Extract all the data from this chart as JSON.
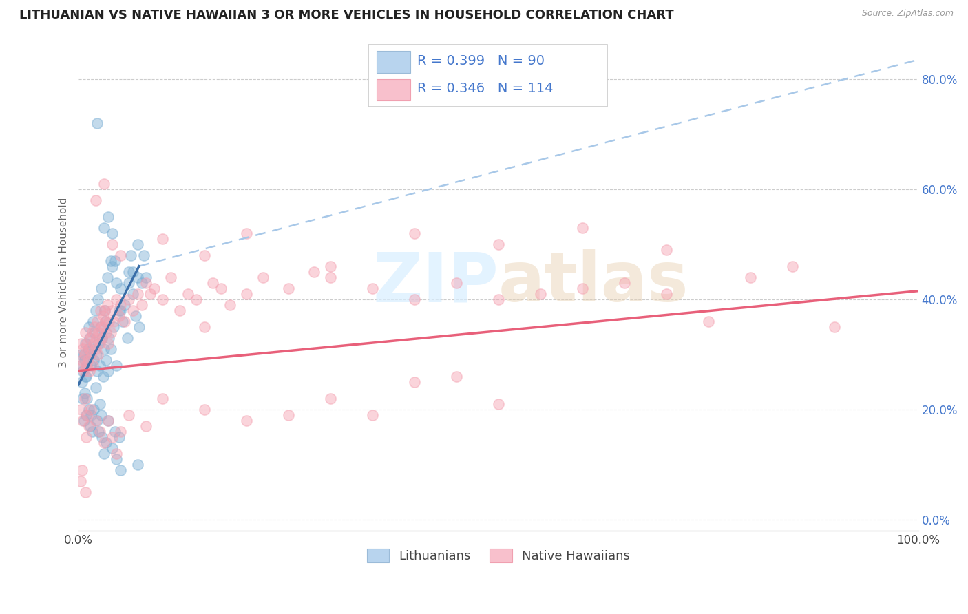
{
  "title": "LITHUANIAN VS NATIVE HAWAIIAN 3 OR MORE VEHICLES IN HOUSEHOLD CORRELATION CHART",
  "source": "Source: ZipAtlas.com",
  "ylabel": "3 or more Vehicles in Household",
  "xlim": [
    0.0,
    1.0
  ],
  "ylim": [
    -0.02,
    0.88
  ],
  "y_ticks": [
    0.0,
    0.2,
    0.4,
    0.6,
    0.8
  ],
  "y_tick_labels": [
    "0.0%",
    "20.0%",
    "40.0%",
    "60.0%",
    "80.0%"
  ],
  "x_ticks": [
    0.0,
    0.2,
    0.4,
    0.6,
    0.8,
    1.0
  ],
  "x_tick_labels": [
    "0.0%",
    "",
    "",
    "",
    "",
    "100.0%"
  ],
  "blue_color": "#7BAFD4",
  "pink_color": "#F4A0B0",
  "trendline_blue": "#3A6EA8",
  "trendline_pink": "#E8607A",
  "trendline_dashed": "#A8C8E8",
  "R_blue": 0.399,
  "N_blue": 90,
  "R_pink": 0.346,
  "N_pink": 114,
  "legend_text_color": "#4477CC",
  "legend_labels": [
    "Lithuanians",
    "Native Hawaiians"
  ],
  "watermark_color": "#D8EEFF",
  "blue_scatter_x": [
    0.002,
    0.003,
    0.004,
    0.005,
    0.005,
    0.006,
    0.006,
    0.007,
    0.007,
    0.008,
    0.008,
    0.009,
    0.009,
    0.01,
    0.01,
    0.011,
    0.012,
    0.012,
    0.013,
    0.014,
    0.014,
    0.015,
    0.015,
    0.016,
    0.016,
    0.017,
    0.018,
    0.018,
    0.019,
    0.02,
    0.02,
    0.021,
    0.022,
    0.022,
    0.023,
    0.024,
    0.024,
    0.025,
    0.025,
    0.026,
    0.027,
    0.027,
    0.028,
    0.028,
    0.029,
    0.03,
    0.03,
    0.031,
    0.032,
    0.033,
    0.033,
    0.034,
    0.035,
    0.035,
    0.036,
    0.038,
    0.038,
    0.04,
    0.04,
    0.042,
    0.043,
    0.045,
    0.045,
    0.048,
    0.048,
    0.05,
    0.05,
    0.052,
    0.055,
    0.058,
    0.06,
    0.062,
    0.065,
    0.065,
    0.068,
    0.07,
    0.07,
    0.072,
    0.075,
    0.078,
    0.08,
    0.022,
    0.04,
    0.035,
    0.043,
    0.05,
    0.03,
    0.045,
    0.06,
    0.07
  ],
  "blue_scatter_y": [
    0.28,
    0.3,
    0.25,
    0.27,
    0.22,
    0.3,
    0.18,
    0.29,
    0.23,
    0.32,
    0.26,
    0.26,
    0.19,
    0.28,
    0.22,
    0.31,
    0.35,
    0.2,
    0.33,
    0.3,
    0.17,
    0.28,
    0.19,
    0.31,
    0.16,
    0.36,
    0.29,
    0.2,
    0.34,
    0.38,
    0.24,
    0.3,
    0.27,
    0.18,
    0.4,
    0.32,
    0.16,
    0.28,
    0.21,
    0.35,
    0.42,
    0.19,
    0.33,
    0.15,
    0.26,
    0.31,
    0.12,
    0.38,
    0.36,
    0.29,
    0.14,
    0.44,
    0.27,
    0.18,
    0.33,
    0.31,
    0.47,
    0.46,
    0.13,
    0.35,
    0.16,
    0.28,
    0.11,
    0.38,
    0.15,
    0.42,
    0.09,
    0.36,
    0.39,
    0.33,
    0.45,
    0.48,
    0.41,
    0.45,
    0.37,
    0.5,
    0.44,
    0.35,
    0.43,
    0.48,
    0.44,
    0.72,
    0.52,
    0.55,
    0.47,
    0.38,
    0.53,
    0.43,
    0.43,
    0.1
  ],
  "pink_scatter_x": [
    0.002,
    0.003,
    0.004,
    0.005,
    0.006,
    0.007,
    0.008,
    0.009,
    0.01,
    0.011,
    0.012,
    0.013,
    0.014,
    0.015,
    0.016,
    0.017,
    0.018,
    0.019,
    0.02,
    0.021,
    0.022,
    0.023,
    0.024,
    0.025,
    0.026,
    0.027,
    0.028,
    0.029,
    0.03,
    0.031,
    0.032,
    0.033,
    0.034,
    0.035,
    0.036,
    0.038,
    0.04,
    0.042,
    0.045,
    0.048,
    0.05,
    0.055,
    0.06,
    0.065,
    0.07,
    0.075,
    0.08,
    0.085,
    0.09,
    0.1,
    0.11,
    0.12,
    0.13,
    0.14,
    0.15,
    0.16,
    0.17,
    0.18,
    0.2,
    0.22,
    0.25,
    0.28,
    0.3,
    0.35,
    0.4,
    0.45,
    0.5,
    0.55,
    0.6,
    0.65,
    0.7,
    0.75,
    0.8,
    0.85,
    0.9,
    0.003,
    0.005,
    0.007,
    0.009,
    0.01,
    0.012,
    0.015,
    0.02,
    0.025,
    0.03,
    0.035,
    0.04,
    0.045,
    0.05,
    0.06,
    0.08,
    0.1,
    0.15,
    0.2,
    0.25,
    0.3,
    0.35,
    0.4,
    0.45,
    0.5,
    0.02,
    0.03,
    0.04,
    0.05,
    0.1,
    0.15,
    0.2,
    0.3,
    0.4,
    0.5,
    0.6,
    0.7,
    0.002,
    0.004,
    0.008
  ],
  "pink_scatter_y": [
    0.28,
    0.32,
    0.29,
    0.31,
    0.27,
    0.3,
    0.34,
    0.28,
    0.32,
    0.29,
    0.31,
    0.27,
    0.33,
    0.3,
    0.34,
    0.28,
    0.32,
    0.35,
    0.31,
    0.33,
    0.36,
    0.3,
    0.34,
    0.32,
    0.38,
    0.35,
    0.33,
    0.37,
    0.35,
    0.38,
    0.36,
    0.34,
    0.39,
    0.32,
    0.36,
    0.34,
    0.38,
    0.36,
    0.4,
    0.37,
    0.39,
    0.36,
    0.4,
    0.38,
    0.41,
    0.39,
    0.43,
    0.41,
    0.42,
    0.4,
    0.44,
    0.38,
    0.41,
    0.4,
    0.35,
    0.43,
    0.42,
    0.39,
    0.41,
    0.44,
    0.42,
    0.45,
    0.44,
    0.42,
    0.4,
    0.43,
    0.4,
    0.41,
    0.42,
    0.43,
    0.41,
    0.36,
    0.44,
    0.46,
    0.35,
    0.2,
    0.18,
    0.22,
    0.15,
    0.19,
    0.17,
    0.2,
    0.18,
    0.16,
    0.14,
    0.18,
    0.15,
    0.12,
    0.16,
    0.19,
    0.17,
    0.22,
    0.2,
    0.18,
    0.19,
    0.22,
    0.19,
    0.25,
    0.26,
    0.21,
    0.58,
    0.61,
    0.5,
    0.48,
    0.51,
    0.48,
    0.52,
    0.46,
    0.52,
    0.5,
    0.53,
    0.49,
    0.07,
    0.09,
    0.05
  ],
  "blue_trendline_solid": [
    [
      0.0,
      0.245
    ],
    [
      0.072,
      0.46
    ]
  ],
  "blue_trendline_dashed": [
    [
      0.072,
      0.46
    ],
    [
      1.0,
      0.835
    ]
  ],
  "pink_trendline": [
    [
      0.0,
      0.27
    ],
    [
      1.0,
      0.415
    ]
  ]
}
